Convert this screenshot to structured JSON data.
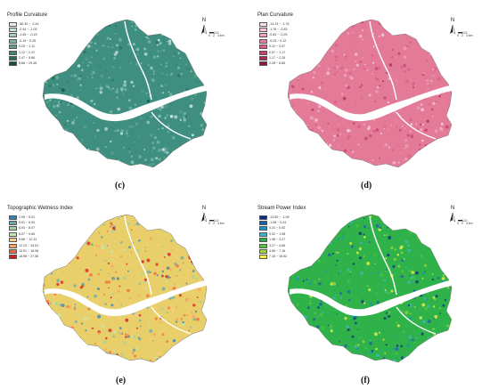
{
  "panels": [
    {
      "id": "c",
      "caption": "(c)",
      "legend_title": "Profile Curvature",
      "base_color": "#3f8f80",
      "river_color": "#ffffff",
      "legend": [
        {
          "label": "-56.30 ~ -2.44",
          "color": "#e6f2ef"
        },
        {
          "label": "-2.44 ~ -1.05",
          "color": "#c4e0d9"
        },
        {
          "label": "-1.05 ~ -0.15",
          "color": "#9fcbc1"
        },
        {
          "label": "-0.15 ~ 0.25",
          "color": "#7ab5a8"
        },
        {
          "label": "0.25 ~ 1.12",
          "color": "#5aa090"
        },
        {
          "label": "1.12 ~ 2.47",
          "color": "#3e8777"
        },
        {
          "label": "2.47 ~ 5.66",
          "color": "#286e5f"
        },
        {
          "label": "5.66 ~ 29.46",
          "color": "#124f42"
        }
      ]
    },
    {
      "id": "d",
      "caption": "(d)",
      "legend_title": "Plan Curvature",
      "base_color": "#e37a97",
      "river_color": "#ffffff",
      "legend": [
        {
          "label": "-14.23 ~ -1.76",
          "color": "#fde3ec"
        },
        {
          "label": "-1.76 ~ -0.83",
          "color": "#f8c6d6"
        },
        {
          "label": "-0.83 ~ -0.25",
          "color": "#f0a3bb"
        },
        {
          "label": "-0.25 ~ 0.12",
          "color": "#e6809f"
        },
        {
          "label": "0.12 ~ 0.57",
          "color": "#d75f84"
        },
        {
          "label": "0.57 ~ 1.17",
          "color": "#c3436c"
        },
        {
          "label": "1.17 ~ 2.28",
          "color": "#a82c55"
        },
        {
          "label": "2.28 ~ 8.86",
          "color": "#86173e"
        }
      ]
    },
    {
      "id": "e",
      "caption": "(e)",
      "legend_title": "Topographic Wetness Index",
      "base_color": "#e8cf6a",
      "river_color": "#ffffff",
      "legend": [
        {
          "label": "2.95 ~ 5.51",
          "color": "#2b83ba"
        },
        {
          "label": "5.51 ~ 6.93",
          "color": "#64abb0"
        },
        {
          "label": "6.93 ~ 8.07",
          "color": "#9dd3a6"
        },
        {
          "label": "8.07 ~ 9.66",
          "color": "#c7e8ad"
        },
        {
          "label": "9.66 ~ 12.13",
          "color": "#fec980"
        },
        {
          "label": "12.13 ~ 15.51",
          "color": "#f9a15c"
        },
        {
          "label": "15.51 ~ 18.98",
          "color": "#f06b39"
        },
        {
          "label": "18.98 ~ 27.36",
          "color": "#d7191c"
        }
      ]
    },
    {
      "id": "f",
      "caption": "(f)",
      "legend_title": "Stream Power Index",
      "base_color": "#2fb24a",
      "river_color": "#ffffff",
      "legend": [
        {
          "label": "-13.82 ~ -1.08",
          "color": "#0c2c84"
        },
        {
          "label": "-1.08 ~ 0.24",
          "color": "#225ea8"
        },
        {
          "label": "0.24 ~ 0.92",
          "color": "#1d91c0"
        },
        {
          "label": "0.92 ~ 1.98",
          "color": "#41b6c4"
        },
        {
          "label": "1.98 ~ 3.27",
          "color": "#2fa84f"
        },
        {
          "label": "3.27 ~ 4.66",
          "color": "#57c33f"
        },
        {
          "label": "4.66 ~ 7.16",
          "color": "#9bd842"
        },
        {
          "label": "7.16 ~ 16.52",
          "color": "#f2f34a"
        }
      ]
    }
  ],
  "north_label": "N",
  "scale_labels": [
    "0",
    "2",
    "4 km"
  ],
  "icons": [
    "north-arrow-icon",
    "scale-bar-icon"
  ]
}
